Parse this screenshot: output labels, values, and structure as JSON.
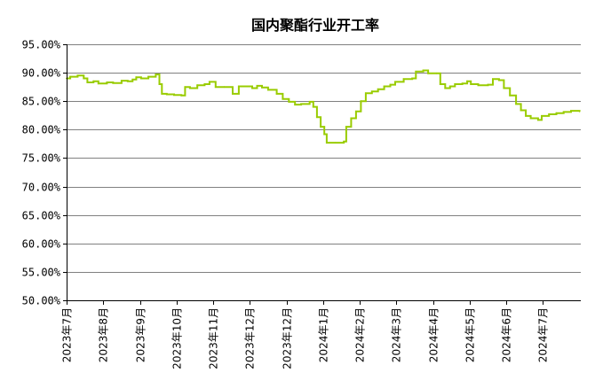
{
  "chart_data": {
    "type": "line",
    "title": "国内聚酯行业开工率",
    "xlabel": "",
    "ylabel": "",
    "ylim": [
      50,
      95
    ],
    "y_ticks": [
      "95.00%",
      "90.00%",
      "85.00%",
      "80.00%",
      "75.00%",
      "70.00%",
      "65.00%",
      "60.00%",
      "55.00%",
      "50.00%"
    ],
    "y_tick_values": [
      95,
      90,
      85,
      80,
      75,
      70,
      65,
      60,
      55,
      50
    ],
    "x_tick_labels": [
      "2023年7月",
      "2023年8月",
      "2023年9月",
      "2023年10月",
      "2023年11月",
      "2023年12月",
      "2023年12月",
      "2024年1月",
      "2024年2月",
      "2024年3月",
      "2024年4月",
      "2024年5月",
      "2024年6月",
      "2024年7月"
    ],
    "x_tick_dates": [
      "2023-07-01",
      "2023-07-31",
      "2023-08-30",
      "2023-09-29",
      "2023-10-29",
      "2023-11-28",
      "2023-12-28",
      "2024-01-27",
      "2024-02-26",
      "2024-03-27",
      "2024-04-26",
      "2024-05-26",
      "2024-06-25",
      "2024-07-25"
    ],
    "x_range": [
      "2023-07-01",
      "2024-08-25"
    ],
    "grid": true,
    "legend": "none",
    "color": "#99CC00",
    "series": [
      {
        "points": [
          [
            "2023-07-01",
            89.0
          ],
          [
            "2023-07-04",
            89.3
          ],
          [
            "2023-07-10",
            89.5
          ],
          [
            "2023-07-15",
            89.0
          ],
          [
            "2023-07-18",
            88.3
          ],
          [
            "2023-07-23",
            88.5
          ],
          [
            "2023-07-27",
            88.1
          ],
          [
            "2023-08-03",
            88.3
          ],
          [
            "2023-08-08",
            88.2
          ],
          [
            "2023-08-15",
            88.6
          ],
          [
            "2023-08-20",
            88.5
          ],
          [
            "2023-08-24",
            88.8
          ],
          [
            "2023-08-27",
            89.2
          ],
          [
            "2023-08-31",
            89.0
          ],
          [
            "2023-09-06",
            89.3
          ],
          [
            "2023-09-12",
            89.7
          ],
          [
            "2023-09-15",
            88.0
          ],
          [
            "2023-09-17",
            86.3
          ],
          [
            "2023-09-21",
            86.2
          ],
          [
            "2023-09-27",
            86.1
          ],
          [
            "2023-10-03",
            86.0
          ],
          [
            "2023-10-06",
            87.5
          ],
          [
            "2023-10-10",
            87.3
          ],
          [
            "2023-10-16",
            87.8
          ],
          [
            "2023-10-22",
            88.0
          ],
          [
            "2023-10-26",
            88.4
          ],
          [
            "2023-10-31",
            87.5
          ],
          [
            "2023-11-07",
            87.5
          ],
          [
            "2023-11-14",
            86.3
          ],
          [
            "2023-11-19",
            87.6
          ],
          [
            "2023-11-26",
            87.6
          ],
          [
            "2023-11-30",
            87.3
          ],
          [
            "2023-12-04",
            87.7
          ],
          [
            "2023-12-08",
            87.4
          ],
          [
            "2023-12-13",
            87.0
          ],
          [
            "2023-12-20",
            86.3
          ],
          [
            "2023-12-25",
            85.4
          ],
          [
            "2023-12-30",
            84.9
          ],
          [
            "2024-01-04",
            84.4
          ],
          [
            "2024-01-09",
            84.5
          ],
          [
            "2024-01-16",
            84.9
          ],
          [
            "2024-01-19",
            84.0
          ],
          [
            "2024-01-22",
            82.2
          ],
          [
            "2024-01-25",
            80.5
          ],
          [
            "2024-01-28",
            79.2
          ],
          [
            "2024-01-30",
            77.7
          ],
          [
            "2024-02-06",
            77.7
          ],
          [
            "2024-02-13",
            77.9
          ],
          [
            "2024-02-15",
            80.5
          ],
          [
            "2024-02-19",
            82.0
          ],
          [
            "2024-02-23",
            83.2
          ],
          [
            "2024-02-27",
            85.0
          ],
          [
            "2024-03-02",
            86.4
          ],
          [
            "2024-03-07",
            86.7
          ],
          [
            "2024-03-12",
            87.1
          ],
          [
            "2024-03-17",
            87.6
          ],
          [
            "2024-03-22",
            87.9
          ],
          [
            "2024-03-26",
            88.4
          ],
          [
            "2024-04-02",
            88.9
          ],
          [
            "2024-04-09",
            89.0
          ],
          [
            "2024-04-12",
            90.2
          ],
          [
            "2024-04-18",
            90.4
          ],
          [
            "2024-04-22",
            89.9
          ],
          [
            "2024-04-29",
            89.9
          ],
          [
            "2024-05-02",
            88.0
          ],
          [
            "2024-05-06",
            87.3
          ],
          [
            "2024-05-10",
            87.6
          ],
          [
            "2024-05-14",
            88.0
          ],
          [
            "2024-05-20",
            88.1
          ],
          [
            "2024-05-24",
            88.5
          ],
          [
            "2024-05-27",
            88.0
          ],
          [
            "2024-06-02",
            87.8
          ],
          [
            "2024-06-10",
            87.9
          ],
          [
            "2024-06-14",
            88.9
          ],
          [
            "2024-06-19",
            88.7
          ],
          [
            "2024-06-23",
            87.3
          ],
          [
            "2024-06-28",
            86.0
          ],
          [
            "2024-07-03",
            84.5
          ],
          [
            "2024-07-07",
            83.4
          ],
          [
            "2024-07-11",
            82.4
          ],
          [
            "2024-07-15",
            82.0
          ],
          [
            "2024-07-21",
            81.7
          ],
          [
            "2024-07-24",
            82.4
          ],
          [
            "2024-07-30",
            82.7
          ],
          [
            "2024-08-05",
            82.9
          ],
          [
            "2024-08-11",
            83.1
          ],
          [
            "2024-08-17",
            83.3
          ],
          [
            "2024-08-24",
            83.2
          ]
        ]
      }
    ]
  }
}
